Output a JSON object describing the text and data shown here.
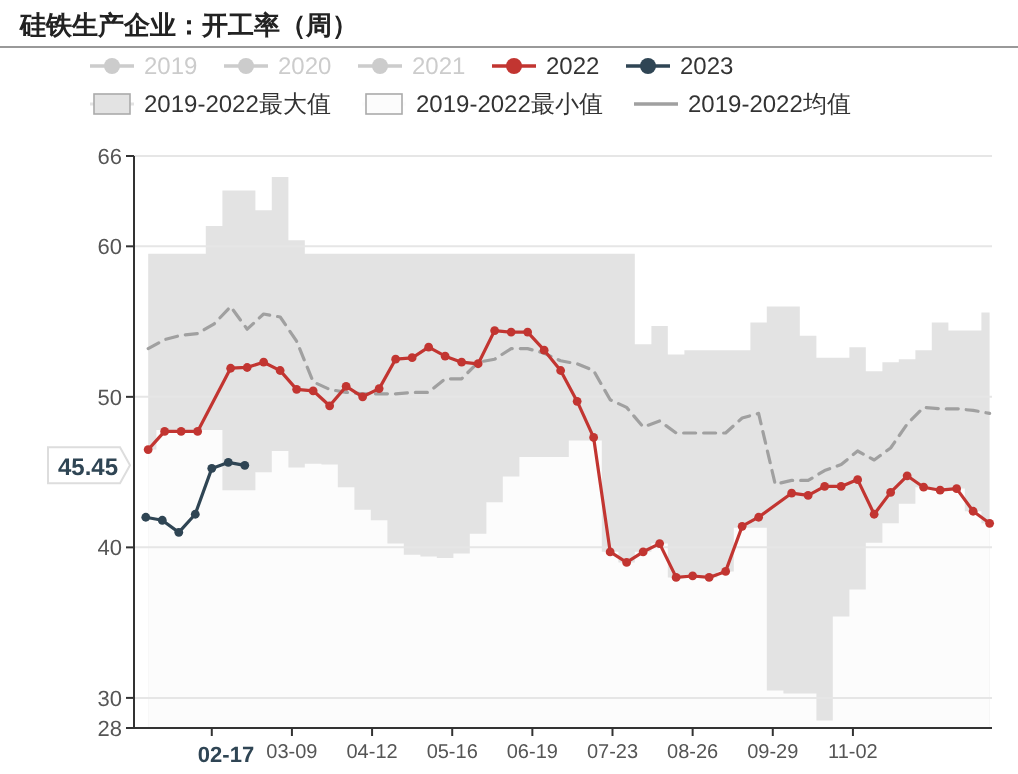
{
  "chart_data": {
    "type": "line",
    "title": "硅铁生产企业：开工率（周）",
    "xlim": [
      "--01-01",
      "--12-31"
    ],
    "xticks": [
      {
        "value": "--02-03",
        "label": null
      },
      {
        "value": "--03-09",
        "label": "03-09"
      },
      {
        "value": "--04-12",
        "label": "04-12"
      },
      {
        "value": "--05-16",
        "label": "05-16"
      },
      {
        "value": "--06-19",
        "label": "06-19"
      },
      {
        "value": "--07-23",
        "label": "07-23"
      },
      {
        "value": "--08-26",
        "label": "08-26"
      },
      {
        "value": "--09-29",
        "label": "09-29"
      },
      {
        "value": "--11-02",
        "label": "11-02"
      }
    ],
    "ylim": [
      28,
      66
    ],
    "yticks": [
      28,
      30,
      40,
      50,
      60,
      66
    ],
    "grid": "y",
    "legend": "top",
    "annotations": [
      {
        "text": "45.45",
        "y": 45.45
      },
      "02-17"
    ],
    "series": [
      {
        "name": "2019",
        "color": "#cccccc",
        "marker": "circle"
      },
      {
        "name": "2020",
        "color": "#cccccc",
        "marker": "circle"
      },
      {
        "name": "2021",
        "color": "#cccccc",
        "marker": "circle"
      },
      {
        "name": "2022",
        "color": "#c23531",
        "marker": "circle",
        "x": [
          "--01-07",
          "--01-14",
          "--01-21",
          "--01-28",
          "--02-11",
          "--02-18",
          "--02-25",
          "--03-04",
          "--03-11",
          "--03-18",
          "--03-25",
          "--04-01",
          "--04-08",
          "--04-15",
          "--04-22",
          "--04-29",
          "--05-06",
          "--05-13",
          "--05-20",
          "--05-27",
          "--06-03",
          "--06-10",
          "--06-17",
          "--06-24",
          "--07-01",
          "--07-08",
          "--07-15",
          "--07-22",
          "--07-29",
          "--08-05",
          "--08-12",
          "--08-19",
          "--08-26",
          "--09-02",
          "--09-09",
          "--09-16",
          "--09-23",
          "--10-07",
          "--10-14",
          "--10-21",
          "--10-28",
          "--11-04",
          "--11-11",
          "--11-18",
          "--11-25",
          "--12-02",
          "--12-09",
          "--12-16",
          "--12-23",
          "--12-30"
        ],
        "values": [
          46.5,
          47.7,
          47.7,
          47.7,
          51.9,
          51.95,
          52.3,
          51.75,
          50.5,
          50.4,
          49.4,
          50.7,
          50.0,
          50.55,
          52.5,
          52.6,
          53.3,
          52.7,
          52.3,
          52.2,
          54.4,
          54.3,
          54.3,
          53.1,
          51.75,
          49.7,
          47.3,
          39.7,
          39.0,
          39.7,
          40.25,
          38.0,
          38.1,
          38.0,
          38.4,
          41.4,
          42.0,
          43.6,
          43.45,
          44.05,
          44.05,
          44.5,
          42.2,
          43.65,
          44.75,
          44.0,
          43.8,
          43.9,
          42.4,
          41.6
        ]
      },
      {
        "name": "2023",
        "color": "#2f4554",
        "marker": "circle",
        "x": [
          "--01-06",
          "--01-13",
          "--01-20",
          "--01-27",
          "--02-03",
          "--02-10",
          "--02-17"
        ],
        "values": [
          42.0,
          41.8,
          41.0,
          42.2,
          45.25,
          45.65,
          45.45
        ]
      },
      {
        "name": "2019-2022最大值",
        "color": "#e3e3e3",
        "type": "area",
        "marker": "none",
        "x": [
          "--01-07",
          "--01-14",
          "--01-21",
          "--01-28",
          "--02-04",
          "--02-11",
          "--02-18",
          "--02-25",
          "--03-04",
          "--03-11",
          "--03-18",
          "--03-25",
          "--04-01",
          "--04-08",
          "--04-15",
          "--04-22",
          "--04-29",
          "--05-06",
          "--05-13",
          "--05-20",
          "--05-27",
          "--06-03",
          "--06-10",
          "--06-17",
          "--06-24",
          "--07-01",
          "--07-08",
          "--07-15",
          "--07-22",
          "--07-29",
          "--08-05",
          "--08-12",
          "--08-19",
          "--08-26",
          "--09-02",
          "--09-09",
          "--09-16",
          "--09-23",
          "--09-30",
          "--10-07",
          "--10-14",
          "--10-21",
          "--10-28",
          "--11-04",
          "--11-11",
          "--11-18",
          "--11-25",
          "--12-02",
          "--12-09",
          "--12-16",
          "--12-23",
          "--12-30"
        ],
        "values": [
          59.5,
          59.5,
          59.5,
          59.5,
          61.35,
          63.7,
          63.7,
          62.4,
          64.6,
          60.4,
          59.5,
          59.5,
          59.5,
          59.5,
          59.5,
          59.5,
          59.5,
          59.5,
          59.5,
          59.5,
          59.5,
          59.5,
          59.5,
          59.5,
          59.5,
          59.5,
          59.5,
          59.5,
          59.5,
          59.5,
          53.5,
          54.7,
          52.8,
          53.1,
          53.1,
          53.1,
          53.1,
          54.95,
          56.0,
          56.0,
          54.05,
          52.6,
          52.6,
          53.3,
          51.7,
          52.3,
          52.5,
          53.1,
          54.95,
          54.4,
          54.4,
          55.6
        ]
      },
      {
        "name": "2019-2022最小值",
        "color": "#fcfcfc",
        "type": "area",
        "marker": "none",
        "x": [
          "--01-07",
          "--01-14",
          "--01-21",
          "--01-28",
          "--02-04",
          "--02-11",
          "--02-18",
          "--02-25",
          "--03-04",
          "--03-11",
          "--03-18",
          "--03-25",
          "--04-01",
          "--04-08",
          "--04-15",
          "--04-22",
          "--04-29",
          "--05-06",
          "--05-13",
          "--05-20",
          "--05-27",
          "--06-03",
          "--06-10",
          "--06-17",
          "--06-24",
          "--07-01",
          "--07-08",
          "--07-15",
          "--07-22",
          "--07-29",
          "--08-05",
          "--08-12",
          "--08-19",
          "--08-26",
          "--09-02",
          "--09-09",
          "--09-16",
          "--09-23",
          "--09-30",
          "--10-07",
          "--10-14",
          "--10-21",
          "--10-28",
          "--11-04",
          "--11-11",
          "--11-18",
          "--11-25",
          "--12-02",
          "--12-09",
          "--12-16",
          "--12-23",
          "--12-30"
        ],
        "values": [
          46.5,
          47.8,
          47.8,
          47.8,
          47.8,
          43.8,
          43.8,
          45.0,
          46.4,
          45.3,
          45.55,
          45.5,
          44.0,
          42.5,
          41.8,
          40.25,
          39.5,
          39.4,
          39.3,
          39.6,
          40.9,
          43.0,
          44.7,
          46.0,
          46.0,
          46.0,
          47.1,
          47.1,
          39.7,
          39.0,
          39.7,
          40.25,
          38.0,
          38.1,
          38.0,
          38.4,
          41.3,
          41.3,
          30.5,
          30.3,
          30.3,
          28.5,
          35.4,
          37.2,
          40.3,
          41.6,
          42.9,
          44.0,
          43.8,
          43.9,
          42.4,
          41.6
        ]
      },
      {
        "name": "2019-2022均值",
        "color": "#a0a0a0",
        "marker": "none",
        "line_style": "dashed",
        "x": [
          "--01-07",
          "--01-14",
          "--01-21",
          "--01-28",
          "--02-04",
          "--02-11",
          "--02-18",
          "--02-25",
          "--03-04",
          "--03-11",
          "--03-18",
          "--03-25",
          "--04-01",
          "--04-08",
          "--04-15",
          "--04-22",
          "--04-29",
          "--05-06",
          "--05-13",
          "--05-20",
          "--05-27",
          "--06-03",
          "--06-10",
          "--06-17",
          "--06-24",
          "--07-01",
          "--07-08",
          "--07-15",
          "--07-22",
          "--07-29",
          "--08-05",
          "--08-12",
          "--08-19",
          "--08-26",
          "--09-02",
          "--09-09",
          "--09-16",
          "--09-23",
          "--09-30",
          "--10-07",
          "--10-14",
          "--10-21",
          "--10-28",
          "--11-04",
          "--11-11",
          "--11-18",
          "--11-25",
          "--12-02",
          "--12-09",
          "--12-16",
          "--12-23",
          "--12-30"
        ],
        "values": [
          53.2,
          53.8,
          54.1,
          54.2,
          54.85,
          56.0,
          54.5,
          55.5,
          55.3,
          53.7,
          51.0,
          50.5,
          50.3,
          50.2,
          50.2,
          50.2,
          50.3,
          50.3,
          51.2,
          51.2,
          52.3,
          52.5,
          53.2,
          53.2,
          52.9,
          52.4,
          52.2,
          51.75,
          49.8,
          49.3,
          48.0,
          48.4,
          47.6,
          47.6,
          47.6,
          47.6,
          48.6,
          48.9,
          44.2,
          44.45,
          44.45,
          45.1,
          45.5,
          46.4,
          45.8,
          46.6,
          48.2,
          49.3,
          49.2,
          49.2,
          49.1,
          48.9
        ]
      }
    ]
  }
}
